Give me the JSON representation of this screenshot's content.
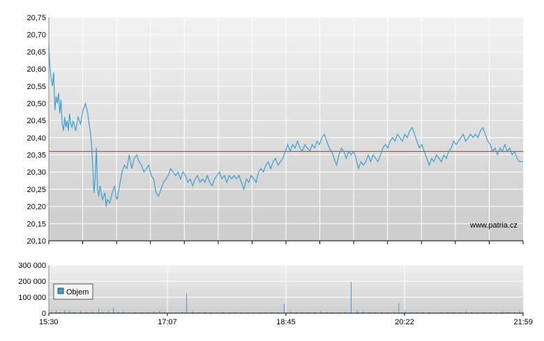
{
  "chart_data": [
    {
      "type": "line",
      "title": "",
      "ylim": [
        20.1,
        20.75
      ],
      "y_ticks": [
        "20,75",
        "20,70",
        "20,65",
        "20,60",
        "20,55",
        "20,50",
        "20,45",
        "20,40",
        "20,35",
        "20,30",
        "20,25",
        "20,20",
        "20,15",
        "20,10"
      ],
      "x_range_minutes": [
        0,
        389
      ],
      "reference_line": {
        "value": 20.36,
        "color": "#dd2222"
      },
      "line_color": "#3a9fd0",
      "watermark": "www.patria.cz",
      "series_points": [
        [
          0,
          20.67
        ],
        [
          1,
          20.6
        ],
        [
          2,
          20.57
        ],
        [
          3,
          20.55
        ],
        [
          4,
          20.59
        ],
        [
          5,
          20.48
        ],
        [
          6,
          20.52
        ],
        [
          7,
          20.5
        ],
        [
          8,
          20.53
        ],
        [
          9,
          20.47
        ],
        [
          10,
          20.51
        ],
        [
          11,
          20.44
        ],
        [
          12,
          20.42
        ],
        [
          13,
          20.46
        ],
        [
          14,
          20.43
        ],
        [
          15,
          20.45
        ],
        [
          16,
          20.42
        ],
        [
          17,
          20.47
        ],
        [
          18,
          20.44
        ],
        [
          19,
          20.43
        ],
        [
          20,
          20.45
        ],
        [
          22,
          20.42
        ],
        [
          24,
          20.46
        ],
        [
          26,
          20.44
        ],
        [
          28,
          20.48
        ],
        [
          30,
          20.5
        ],
        [
          32,
          20.47
        ],
        [
          33,
          20.44
        ],
        [
          34,
          20.42
        ],
        [
          35,
          20.38
        ],
        [
          36,
          20.32
        ],
        [
          37,
          20.24
        ],
        [
          38,
          20.28
        ],
        [
          39,
          20.37
        ],
        [
          40,
          20.25
        ],
        [
          41,
          20.23
        ],
        [
          42,
          20.26
        ],
        [
          44,
          20.22
        ],
        [
          46,
          20.24
        ],
        [
          47,
          20.2
        ],
        [
          48,
          20.22
        ],
        [
          50,
          20.21
        ],
        [
          52,
          20.24
        ],
        [
          54,
          20.26
        ],
        [
          55,
          20.23
        ],
        [
          56,
          20.22
        ],
        [
          58,
          20.26
        ],
        [
          60,
          20.3
        ],
        [
          62,
          20.32
        ],
        [
          64,
          20.31
        ],
        [
          66,
          20.35
        ],
        [
          68,
          20.31
        ],
        [
          70,
          20.34
        ],
        [
          72,
          20.35
        ],
        [
          74,
          20.33
        ],
        [
          76,
          20.32
        ],
        [
          78,
          20.3
        ],
        [
          80,
          20.31
        ],
        [
          82,
          20.32
        ],
        [
          84,
          20.29
        ],
        [
          86,
          20.28
        ],
        [
          88,
          20.24
        ],
        [
          90,
          20.23
        ],
        [
          92,
          20.25
        ],
        [
          94,
          20.27
        ],
        [
          96,
          20.28
        ],
        [
          98,
          20.29
        ],
        [
          100,
          20.31
        ],
        [
          102,
          20.3
        ],
        [
          104,
          20.29
        ],
        [
          106,
          20.3
        ],
        [
          108,
          20.28
        ],
        [
          110,
          20.3
        ],
        [
          112,
          20.29
        ],
        [
          114,
          20.27
        ],
        [
          116,
          20.28
        ],
        [
          118,
          20.26
        ],
        [
          120,
          20.28
        ],
        [
          122,
          20.29
        ],
        [
          124,
          20.27
        ],
        [
          126,
          20.28
        ],
        [
          128,
          20.27
        ],
        [
          130,
          20.29
        ],
        [
          132,
          20.27
        ],
        [
          134,
          20.26
        ],
        [
          136,
          20.28
        ],
        [
          138,
          20.29
        ],
        [
          140,
          20.3
        ],
        [
          142,
          20.28
        ],
        [
          144,
          20.29
        ],
        [
          146,
          20.27
        ],
        [
          148,
          20.29
        ],
        [
          150,
          20.28
        ],
        [
          152,
          20.29
        ],
        [
          154,
          20.28
        ],
        [
          156,
          20.29
        ],
        [
          158,
          20.27
        ],
        [
          160,
          20.25
        ],
        [
          162,
          20.28
        ],
        [
          164,
          20.27
        ],
        [
          166,
          20.29
        ],
        [
          168,
          20.28
        ],
        [
          170,
          20.27
        ],
        [
          172,
          20.3
        ],
        [
          174,
          20.31
        ],
        [
          176,
          20.3
        ],
        [
          178,
          20.32
        ],
        [
          180,
          20.33
        ],
        [
          182,
          20.31
        ],
        [
          184,
          20.33
        ],
        [
          186,
          20.34
        ],
        [
          188,
          20.32
        ],
        [
          190,
          20.33
        ],
        [
          192,
          20.34
        ],
        [
          194,
          20.36
        ],
        [
          196,
          20.38
        ],
        [
          198,
          20.36
        ],
        [
          200,
          20.38
        ],
        [
          202,
          20.37
        ],
        [
          204,
          20.39
        ],
        [
          206,
          20.37
        ],
        [
          208,
          20.36
        ],
        [
          210,
          20.38
        ],
        [
          212,
          20.37
        ],
        [
          214,
          20.36
        ],
        [
          216,
          20.38
        ],
        [
          218,
          20.37
        ],
        [
          220,
          20.39
        ],
        [
          222,
          20.38
        ],
        [
          224,
          20.4
        ],
        [
          226,
          20.41
        ],
        [
          228,
          20.39
        ],
        [
          230,
          20.37
        ],
        [
          232,
          20.36
        ],
        [
          234,
          20.34
        ],
        [
          236,
          20.32
        ],
        [
          238,
          20.35
        ],
        [
          240,
          20.37
        ],
        [
          242,
          20.36
        ],
        [
          244,
          20.34
        ],
        [
          246,
          20.36
        ],
        [
          248,
          20.35
        ],
        [
          250,
          20.36
        ],
        [
          252,
          20.34
        ],
        [
          254,
          20.31
        ],
        [
          256,
          20.33
        ],
        [
          258,
          20.32
        ],
        [
          260,
          20.33
        ],
        [
          262,
          20.35
        ],
        [
          264,
          20.33
        ],
        [
          266,
          20.35
        ],
        [
          268,
          20.34
        ],
        [
          270,
          20.33
        ],
        [
          272,
          20.35
        ],
        [
          274,
          20.37
        ],
        [
          276,
          20.38
        ],
        [
          278,
          20.37
        ],
        [
          280,
          20.39
        ],
        [
          282,
          20.4
        ],
        [
          284,
          20.39
        ],
        [
          286,
          20.41
        ],
        [
          288,
          20.4
        ],
        [
          290,
          20.39
        ],
        [
          292,
          20.41
        ],
        [
          294,
          20.4
        ],
        [
          296,
          20.42
        ],
        [
          298,
          20.43
        ],
        [
          300,
          20.41
        ],
        [
          302,
          20.39
        ],
        [
          304,
          20.37
        ],
        [
          306,
          20.38
        ],
        [
          308,
          20.36
        ],
        [
          310,
          20.34
        ],
        [
          312,
          20.32
        ],
        [
          314,
          20.34
        ],
        [
          316,
          20.33
        ],
        [
          318,
          20.35
        ],
        [
          320,
          20.34
        ],
        [
          322,
          20.33
        ],
        [
          324,
          20.35
        ],
        [
          326,
          20.34
        ],
        [
          328,
          20.36
        ],
        [
          330,
          20.37
        ],
        [
          332,
          20.39
        ],
        [
          334,
          20.38
        ],
        [
          336,
          20.39
        ],
        [
          338,
          20.4
        ],
        [
          340,
          20.41
        ],
        [
          342,
          20.39
        ],
        [
          344,
          20.4
        ],
        [
          346,
          20.41
        ],
        [
          348,
          20.4
        ],
        [
          350,
          20.41
        ],
        [
          352,
          20.4
        ],
        [
          354,
          20.42
        ],
        [
          356,
          20.43
        ],
        [
          358,
          20.41
        ],
        [
          360,
          20.39
        ],
        [
          362,
          20.38
        ],
        [
          364,
          20.36
        ],
        [
          366,
          20.37
        ],
        [
          368,
          20.35
        ],
        [
          370,
          20.37
        ],
        [
          372,
          20.36
        ],
        [
          374,
          20.38
        ],
        [
          376,
          20.36
        ],
        [
          378,
          20.37
        ],
        [
          380,
          20.35
        ],
        [
          382,
          20.36
        ],
        [
          384,
          20.34
        ],
        [
          386,
          20.33
        ],
        [
          388,
          20.33
        ],
        [
          389,
          20.33
        ]
      ]
    },
    {
      "type": "bar",
      "ylim": [
        0,
        300000
      ],
      "y_ticks": [
        "300 000",
        "200 000",
        "100 000",
        "0"
      ],
      "x_ticks": [
        "15:30",
        "17:07",
        "18:45",
        "20:22",
        "21:59"
      ],
      "bar_color": "#3a9fd0",
      "legend": {
        "label": "Objem",
        "placement": "left"
      },
      "volume_points": [
        [
          2,
          12000
        ],
        [
          6,
          18000
        ],
        [
          9,
          8000
        ],
        [
          13,
          22000
        ],
        [
          17,
          15000
        ],
        [
          21,
          9000
        ],
        [
          26,
          14000
        ],
        [
          31,
          7000
        ],
        [
          36,
          11000
        ],
        [
          41,
          28000
        ],
        [
          44,
          10000
        ],
        [
          49,
          16000
        ],
        [
          53,
          34000
        ],
        [
          57,
          9000
        ],
        [
          61,
          12000
        ],
        [
          66,
          5000
        ],
        [
          71,
          8000
        ],
        [
          76,
          6000
        ],
        [
          81,
          7000
        ],
        [
          86,
          13000
        ],
        [
          91,
          17000
        ],
        [
          95,
          9000
        ],
        [
          99,
          6000
        ],
        [
          104,
          5000
        ],
        [
          109,
          8000
        ],
        [
          113,
          125000
        ],
        [
          118,
          12000
        ],
        [
          123,
          6000
        ],
        [
          128,
          9000
        ],
        [
          133,
          7000
        ],
        [
          138,
          5000
        ],
        [
          143,
          8000
        ],
        [
          148,
          6000
        ],
        [
          153,
          9000
        ],
        [
          158,
          7000
        ],
        [
          163,
          5000
        ],
        [
          168,
          8000
        ],
        [
          173,
          6000
        ],
        [
          178,
          7000
        ],
        [
          183,
          9000
        ],
        [
          188,
          6000
        ],
        [
          193,
          58000
        ],
        [
          198,
          11000
        ],
        [
          203,
          8000
        ],
        [
          208,
          6000
        ],
        [
          213,
          7000
        ],
        [
          218,
          9000
        ],
        [
          223,
          14000
        ],
        [
          228,
          8000
        ],
        [
          233,
          6000
        ],
        [
          238,
          7000
        ],
        [
          243,
          9000
        ],
        [
          248,
          195000
        ],
        [
          253,
          18000
        ],
        [
          258,
          11000
        ],
        [
          263,
          8000
        ],
        [
          268,
          6000
        ],
        [
          273,
          9000
        ],
        [
          278,
          7000
        ],
        [
          283,
          10000
        ],
        [
          287,
          62000
        ],
        [
          292,
          12000
        ],
        [
          297,
          8000
        ],
        [
          302,
          6000
        ],
        [
          307,
          9000
        ],
        [
          312,
          7000
        ],
        [
          317,
          5000
        ],
        [
          322,
          8000
        ],
        [
          327,
          6000
        ],
        [
          332,
          9000
        ],
        [
          337,
          7000
        ],
        [
          342,
          14000
        ],
        [
          347,
          8000
        ],
        [
          352,
          6000
        ],
        [
          357,
          9000
        ],
        [
          362,
          7000
        ],
        [
          367,
          5000
        ],
        [
          372,
          12000
        ],
        [
          377,
          9000
        ],
        [
          382,
          6000
        ],
        [
          386,
          11000
        ],
        [
          389,
          8000
        ]
      ]
    }
  ]
}
